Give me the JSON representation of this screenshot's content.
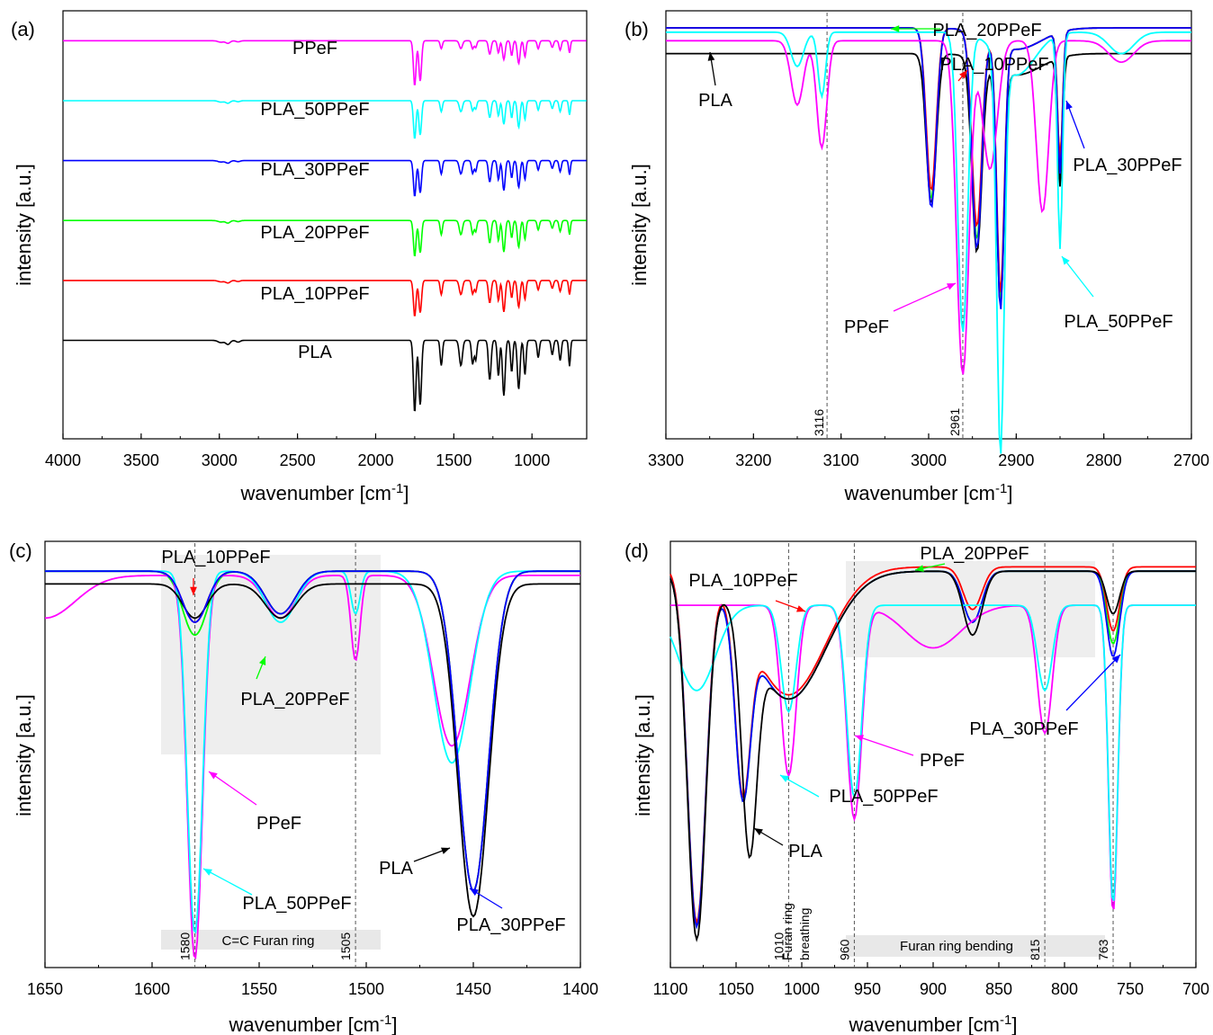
{
  "chart_data": [
    {
      "type": "line",
      "panel_label": "(a)",
      "xlabel": "wavenumber [cm",
      "xlabel_sup": "-1",
      "xlabel_end": "]",
      "ylabel": "intensity [a.u.]",
      "xlim": [
        4000,
        650
      ],
      "xticks": [
        4000,
        3500,
        3000,
        2500,
        2000,
        1500,
        1000
      ],
      "series": [
        {
          "name": "PPeF",
          "color": "#ff00ff",
          "base": 0.93,
          "dip": [
            0.4,
            0.2,
            1.0,
            0.5,
            0.6,
            0.7
          ]
        },
        {
          "name": "PLA_50PPeF",
          "color": "#00ffff",
          "base": 0.79,
          "dip": [
            0.5,
            0.3,
            0.85,
            0.7,
            0.75,
            0.6
          ]
        },
        {
          "name": "PLA_30PPeF",
          "color": "#0000ff",
          "base": 0.65,
          "dip": [
            0.5,
            0.4,
            0.8,
            0.85,
            0.95,
            0.3
          ]
        },
        {
          "name": "PLA_20PPeF",
          "color": "#00ff00",
          "base": 0.51,
          "dip": [
            0.5,
            0.4,
            0.8,
            0.9,
            1.0,
            0.25
          ]
        },
        {
          "name": "PLA_10PPeF",
          "color": "#ff0000",
          "base": 0.37,
          "dip": [
            0.5,
            0.4,
            0.8,
            0.9,
            1.0,
            0.2
          ]
        },
        {
          "name": "PLA",
          "color": "#000000",
          "base": 0.23,
          "dip": [
            0.6,
            0.5,
            1.0,
            1.0,
            1.1,
            0.1
          ]
        }
      ]
    },
    {
      "type": "line",
      "panel_label": "(b)",
      "xlabel": "wavenumber [cm",
      "xlabel_sup": "-1",
      "xlabel_end": "]",
      "ylabel": "intensity [a.u.]",
      "xlim": [
        3300,
        2700
      ],
      "xticks": [
        3300,
        3200,
        3100,
        3000,
        2900,
        2800,
        2700
      ],
      "marker_lines": [
        3116,
        2961
      ],
      "series": [
        {
          "name": "PLA",
          "color": "#000000"
        },
        {
          "name": "PLA_20PPeF",
          "color": "#00ff00"
        },
        {
          "name": "PLA_10PPeF",
          "color": "#ff0000"
        },
        {
          "name": "PLA_30PPeF",
          "color": "#0000ff"
        },
        {
          "name": "PPeF",
          "color": "#ff00ff"
        },
        {
          "name": "PLA_50PPeF",
          "color": "#00ffff"
        }
      ]
    },
    {
      "type": "line",
      "panel_label": "(c)",
      "xlabel": "wavenumber [cm",
      "xlabel_sup": "-1",
      "xlabel_end": "]",
      "ylabel": "intensity [a.u.]",
      "xlim": [
        1650,
        1400
      ],
      "xticks": [
        1650,
        1600,
        1550,
        1500,
        1450,
        1400
      ],
      "marker_lines": [
        1580,
        1505
      ],
      "region_label": "C=C Furan ring",
      "series": [
        {
          "name": "PLA_10PPeF",
          "color": "#ff0000"
        },
        {
          "name": "PLA_20PPeF",
          "color": "#00ff00"
        },
        {
          "name": "PPeF",
          "color": "#ff00ff"
        },
        {
          "name": "PLA_50PPeF",
          "color": "#00ffff"
        },
        {
          "name": "PLA",
          "color": "#000000"
        },
        {
          "name": "PLA_30PPeF",
          "color": "#0000ff"
        }
      ]
    },
    {
      "type": "line",
      "panel_label": "(d)",
      "xlabel": "wavenumber [cm",
      "xlabel_sup": "-1",
      "xlabel_end": "]",
      "ylabel": "intensity [a.u.]",
      "xlim": [
        1100,
        700
      ],
      "xticks": [
        1100,
        1050,
        1000,
        950,
        900,
        850,
        800,
        750,
        700
      ],
      "marker_lines": [
        1010,
        960,
        815,
        763
      ],
      "annotation_1": "Furan ring",
      "annotation_2": "breathing",
      "region_label": "Furan ring bending",
      "series": [
        {
          "name": "PLA_10PPeF",
          "color": "#ff0000"
        },
        {
          "name": "PLA_20PPeF",
          "color": "#00ff00"
        },
        {
          "name": "PLA_30PPeF",
          "color": "#0000ff"
        },
        {
          "name": "PPeF",
          "color": "#ff00ff"
        },
        {
          "name": "PLA_50PPeF",
          "color": "#00ffff"
        },
        {
          "name": "PLA",
          "color": "#000000"
        }
      ]
    }
  ]
}
